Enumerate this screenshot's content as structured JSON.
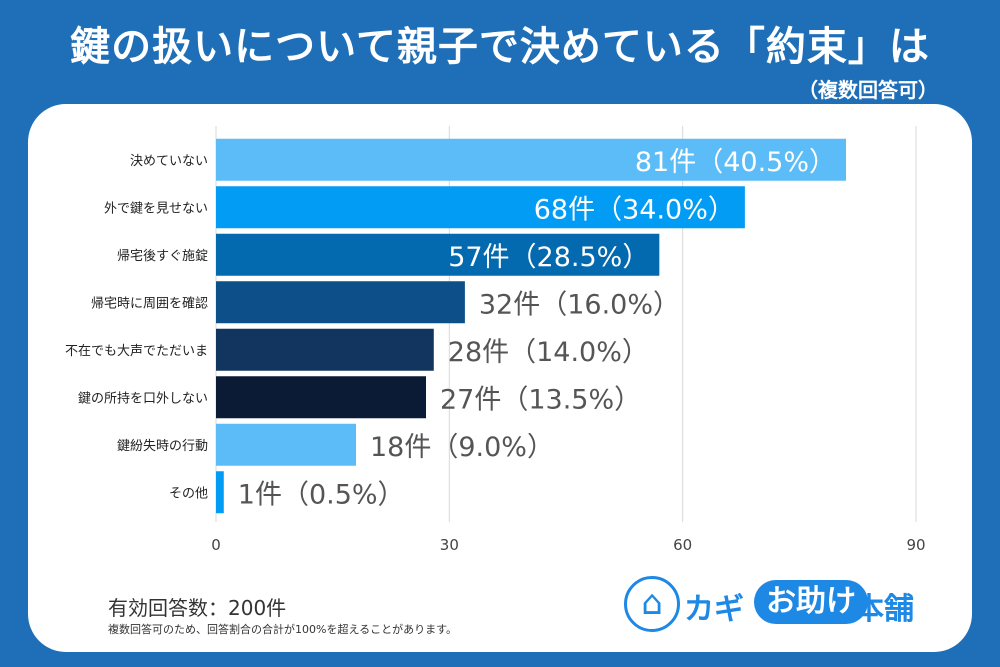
{
  "title": "鍵の扱いについて親子で決めている「約束」は",
  "subtitle": "（複数回答可）",
  "footer": {
    "respondents": "有効回答数：200件",
    "note": "複数回答可のため、回答割合の合計が100%を超えることがあります。"
  },
  "logo": {
    "part1": "カギ",
    "part2": "お助け",
    "part3": "本舗",
    "icon": "house-key-icon"
  },
  "chart_data": {
    "type": "bar",
    "orientation": "horizontal",
    "categories": [
      "決めていない",
      "外で鍵を見せない",
      "帰宅後すぐ施錠",
      "帰宅時に周囲を確認",
      "不在でも大声でただいま",
      "鍵の所持を口外しない",
      "鍵紛失時の行動",
      "その他"
    ],
    "values": [
      81,
      68,
      57,
      32,
      28,
      27,
      18,
      1
    ],
    "labels": [
      "81件（40.5%）",
      "68件（34.0%）",
      "57件（28.5%）",
      "32件（16.0%）",
      "28件（14.0%）",
      "27件（13.5%）",
      "18件（9.0%）",
      "1件（0.5%）"
    ],
    "colors": [
      "#5bbcf8",
      "#039cf4",
      "#046ab0",
      "#0d4f88",
      "#11355f",
      "#0c1b35",
      "#5bbcf8",
      "#039cf4"
    ],
    "label_inside": [
      true,
      true,
      true,
      false,
      false,
      false,
      false,
      false
    ],
    "xticks": [
      0,
      30,
      60,
      90
    ],
    "xlim": [
      0,
      90
    ],
    "grid": true
  }
}
